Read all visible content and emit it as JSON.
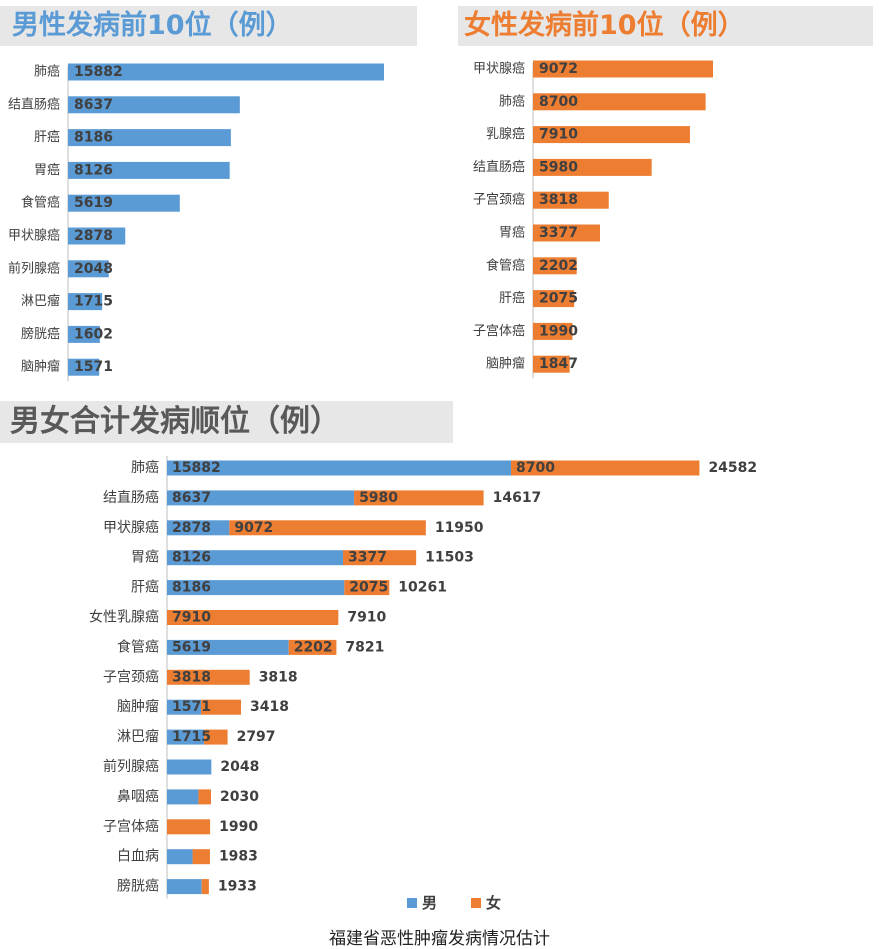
{
  "male_panel": {
    "title": "男性发病前10位（例）"
  },
  "female_panel": {
    "title": "女性发病前10位（例）"
  },
  "total_panel": {
    "title": "男女合计发病顺位（例）"
  },
  "source_note": "福建省恶性肿瘤发病情况估计",
  "colors": {
    "male": "#5b9bd5",
    "female": "#ed7d31",
    "axis": "#bfbfbf"
  },
  "chart_data": [
    {
      "type": "bar",
      "orientation": "horizontal",
      "categories": [
        "肺癌",
        "结直肠癌",
        "肝癌",
        "胃癌",
        "食管癌",
        "甲状腺癌",
        "前列腺癌",
        "淋巴瘤",
        "膀胱癌",
        "脑肿瘤"
      ],
      "values": [
        15882,
        8637,
        8186,
        8126,
        5619,
        2878,
        2048,
        1715,
        1602,
        1571
      ]
    },
    {
      "type": "bar",
      "orientation": "horizontal",
      "categories": [
        "甲状腺癌",
        "肺癌",
        "乳腺癌",
        "结直肠癌",
        "子宫颈癌",
        "胃癌",
        "食管癌",
        "肝癌",
        "子宫体癌",
        "脑肿瘤"
      ],
      "values": [
        9072,
        8700,
        7910,
        5980,
        3818,
        3377,
        2202,
        2075,
        1990,
        1847
      ]
    },
    {
      "type": "bar",
      "orientation": "horizontal",
      "stacked": true,
      "categories": [
        "肺癌",
        "结直肠癌",
        "甲状腺癌",
        "胃癌",
        "肝癌",
        "女性乳腺癌",
        "食管癌",
        "子宫颈癌",
        "脑肿瘤",
        "淋巴瘤",
        "前列腺癌",
        "鼻咽癌",
        "子宫体癌",
        "白血病",
        "膀胱癌"
      ],
      "series": [
        {
          "name": "男",
          "values": [
            15882,
            8637,
            2878,
            8126,
            8186,
            0,
            5619,
            0,
            1571,
            1715,
            2048,
            1450,
            0,
            1180,
            1602
          ]
        },
        {
          "name": "女",
          "values": [
            8700,
            5980,
            9072,
            3377,
            2075,
            7910,
            2202,
            3818,
            1847,
            1082,
            0,
            580,
            1990,
            803,
            331
          ]
        }
      ],
      "segment_labels": [
        [
          "15882",
          "8700"
        ],
        [
          "8637",
          "5980"
        ],
        [
          "2878",
          "9072"
        ],
        [
          "8126",
          "3377"
        ],
        [
          "8186",
          "2075"
        ],
        [
          "",
          "7910"
        ],
        [
          "5619",
          "2202"
        ],
        [
          "",
          "3818"
        ],
        [
          "1571",
          ""
        ],
        [
          "1715",
          ""
        ],
        [
          "",
          ""
        ],
        [
          "",
          ""
        ],
        [
          "",
          ""
        ],
        [
          "",
          ""
        ],
        [
          "",
          ""
        ]
      ],
      "totals": [
        24582,
        14617,
        11950,
        11503,
        10261,
        7910,
        7821,
        3818,
        3418,
        2797,
        2048,
        2030,
        1990,
        1983,
        1933
      ],
      "legend": "bottom"
    }
  ]
}
